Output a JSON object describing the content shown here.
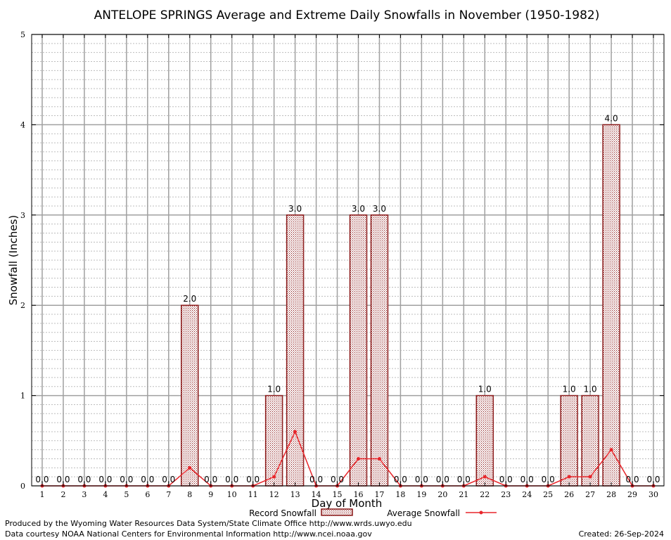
{
  "chart_data": {
    "type": "bar",
    "title": "ANTELOPE SPRINGS Average and Extreme Daily Snowfalls in November (1950-1982)",
    "xlabel": "Day of Month",
    "ylabel": "Snowfall (Inches)",
    "ylim": [
      0,
      5
    ],
    "yticks": [
      "0",
      "1",
      "2",
      "3",
      "4",
      "5"
    ],
    "grid": true,
    "legend_position": "bottom-center",
    "categories": [
      "1",
      "2",
      "3",
      "4",
      "5",
      "6",
      "7",
      "8",
      "9",
      "10",
      "11",
      "12",
      "13",
      "14",
      "15",
      "16",
      "17",
      "18",
      "19",
      "20",
      "21",
      "22",
      "23",
      "24",
      "25",
      "26",
      "27",
      "28",
      "29",
      "30"
    ],
    "series": [
      {
        "name": "Record Snowfall",
        "kind": "bar",
        "color": "#8b1a1a",
        "values": [
          0,
          0,
          0,
          0,
          0,
          0,
          0,
          2,
          0,
          0,
          0,
          1,
          3,
          0,
          0,
          3,
          3,
          0,
          0,
          0,
          0,
          1,
          0,
          0,
          0,
          1,
          1,
          4,
          0,
          0
        ],
        "labels": [
          "0.0",
          "0.0",
          "0.0",
          "0.0",
          "0.0",
          "0.0",
          "0.0",
          "2.0",
          "0.0",
          "0.0",
          "0.0",
          "1.0",
          "3.0",
          "0.0",
          "0.0",
          "3.0",
          "3.0",
          "0.0",
          "0.0",
          "0.0",
          "0.0",
          "1.0",
          "0.0",
          "0.0",
          "0.0",
          "1.0",
          "1.0",
          "4.0",
          "0.0",
          "0.0"
        ]
      },
      {
        "name": "Average Snowfall",
        "kind": "line",
        "color": "#e8262b",
        "values": [
          0,
          0,
          0,
          0,
          0,
          0,
          0,
          0.2,
          0,
          0,
          0,
          0.1,
          0.6,
          0,
          0,
          0.3,
          0.3,
          0,
          0,
          0,
          0,
          0.1,
          0,
          0,
          0,
          0.1,
          0.1,
          0.4,
          0,
          0
        ]
      }
    ]
  },
  "footer": {
    "credit_line1": "Produced by the Wyoming Water Resources Data System/State Climate Office http://www.wrds.uwyo.edu",
    "credit_line2": "Data courtesy NOAA National Centers for Environmental Information http://www.ncei.noaa.gov",
    "created": "Created:  26-Sep-2024"
  }
}
